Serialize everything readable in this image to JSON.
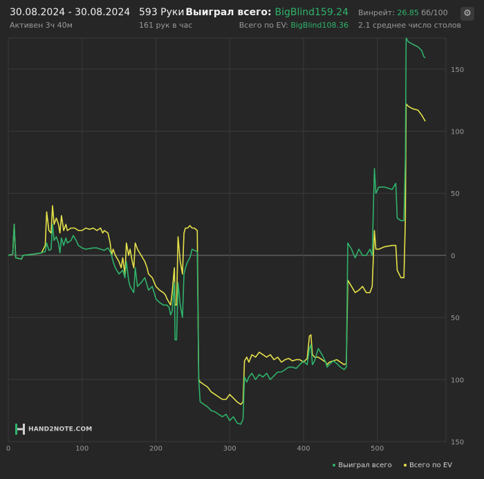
{
  "header": {
    "date_range": "30.08.2024 - 30.08.2024",
    "active_time": "Активен 3ч 40м",
    "hands_count": "593 Руки",
    "hands_per_hour": "161 рук в час",
    "won_label": "Выиграл всего:",
    "won_value": "BigBlind159.24",
    "ev_label": "Всего по EV:",
    "ev_value": "BigBlind108.36",
    "winrate_label": "Винрейт:",
    "winrate_value": "26.85",
    "winrate_unit": "бб/100",
    "avg_tables": "2.1 среднее число столов",
    "settings_icon": "gear-icon"
  },
  "logo": {
    "text": "HAND2NOTE.COM"
  },
  "legend": {
    "won": "Выиграл всего",
    "ev": "Всего по EV"
  },
  "colors": {
    "background": "#262626",
    "won": "#2fb36b",
    "ev": "#e6e34a",
    "grid": "#3a3a3a",
    "zero": "#7a7a7a",
    "accent": "#2fb36b"
  },
  "chart_data": {
    "type": "line",
    "xlim": [
      0,
      593
    ],
    "ylim": [
      -150,
      175
    ],
    "xticks": [
      0,
      100,
      200,
      300,
      400,
      500
    ],
    "yticks": [
      150,
      100,
      50,
      0,
      -50,
      -100,
      -150
    ],
    "ytick_labels": [
      "150",
      "100",
      "50",
      "0",
      "50",
      "100",
      "150"
    ],
    "grid": true,
    "legend_position": "bottom-right",
    "series": [
      {
        "name": "Выиграл всего",
        "color": "#2fb36b",
        "points": [
          [
            0,
            0
          ],
          [
            6,
            1
          ],
          [
            8,
            25
          ],
          [
            10,
            -2
          ],
          [
            18,
            -3
          ],
          [
            20,
            0
          ],
          [
            35,
            1
          ],
          [
            45,
            2
          ],
          [
            50,
            3
          ],
          [
            52,
            10
          ],
          [
            55,
            4
          ],
          [
            58,
            5
          ],
          [
            60,
            25
          ],
          [
            62,
            12
          ],
          [
            65,
            15
          ],
          [
            68,
            10
          ],
          [
            70,
            2
          ],
          [
            72,
            14
          ],
          [
            75,
            8
          ],
          [
            78,
            14
          ],
          [
            80,
            10
          ],
          [
            85,
            12
          ],
          [
            88,
            16
          ],
          [
            92,
            12
          ],
          [
            95,
            8
          ],
          [
            100,
            6
          ],
          [
            105,
            5
          ],
          [
            115,
            6
          ],
          [
            120,
            6
          ],
          [
            125,
            5
          ],
          [
            130,
            4
          ],
          [
            135,
            6
          ],
          [
            138,
            3
          ],
          [
            140,
            0
          ],
          [
            142,
            -5
          ],
          [
            145,
            -10
          ],
          [
            150,
            -15
          ],
          [
            155,
            -12
          ],
          [
            158,
            -18
          ],
          [
            160,
            -5
          ],
          [
            163,
            -20
          ],
          [
            165,
            -25
          ],
          [
            170,
            -30
          ],
          [
            172,
            -10
          ],
          [
            175,
            -25
          ],
          [
            180,
            -22
          ],
          [
            185,
            -18
          ],
          [
            190,
            -28
          ],
          [
            195,
            -25
          ],
          [
            200,
            -35
          ],
          [
            205,
            -38
          ],
          [
            210,
            -40
          ],
          [
            215,
            -40
          ],
          [
            218,
            -42
          ],
          [
            220,
            -48
          ],
          [
            222,
            -45
          ],
          [
            225,
            -22
          ],
          [
            226,
            -68
          ],
          [
            228,
            -68
          ],
          [
            230,
            -22
          ],
          [
            233,
            -40
          ],
          [
            236,
            -50
          ],
          [
            238,
            -15
          ],
          [
            240,
            -10
          ],
          [
            243,
            -5
          ],
          [
            246,
            -2
          ],
          [
            249,
            5
          ],
          [
            252,
            4
          ],
          [
            256,
            3
          ],
          [
            258,
            -100
          ],
          [
            260,
            -118
          ],
          [
            265,
            -120
          ],
          [
            270,
            -122
          ],
          [
            275,
            -125
          ],
          [
            280,
            -126
          ],
          [
            285,
            -128
          ],
          [
            290,
            -130
          ],
          [
            295,
            -128
          ],
          [
            300,
            -133
          ],
          [
            305,
            -130
          ],
          [
            310,
            -135
          ],
          [
            315,
            -136
          ],
          [
            318,
            -132
          ],
          [
            320,
            -98
          ],
          [
            323,
            -102
          ],
          [
            326,
            -98
          ],
          [
            330,
            -95
          ],
          [
            335,
            -100
          ],
          [
            340,
            -96
          ],
          [
            345,
            -98
          ],
          [
            350,
            -95
          ],
          [
            355,
            -100
          ],
          [
            360,
            -97
          ],
          [
            365,
            -94
          ],
          [
            370,
            -94
          ],
          [
            375,
            -92
          ],
          [
            380,
            -90
          ],
          [
            385,
            -90
          ],
          [
            390,
            -91
          ],
          [
            395,
            -88
          ],
          [
            400,
            -85
          ],
          [
            405,
            -88
          ],
          [
            408,
            -75
          ],
          [
            410,
            -72
          ],
          [
            412,
            -88
          ],
          [
            415,
            -85
          ],
          [
            420,
            -75
          ],
          [
            425,
            -80
          ],
          [
            430,
            -86
          ],
          [
            432,
            -90
          ],
          [
            435,
            -88
          ],
          [
            440,
            -85
          ],
          [
            445,
            -87
          ],
          [
            450,
            -90
          ],
          [
            455,
            -92
          ],
          [
            458,
            -90
          ],
          [
            460,
            10
          ],
          [
            465,
            5
          ],
          [
            470,
            -2
          ],
          [
            475,
            5
          ],
          [
            480,
            0
          ],
          [
            485,
            0
          ],
          [
            490,
            5
          ],
          [
            493,
            0
          ],
          [
            496,
            70
          ],
          [
            498,
            50
          ],
          [
            502,
            55
          ],
          [
            510,
            55
          ],
          [
            520,
            53
          ],
          [
            525,
            58
          ],
          [
            527,
            30
          ],
          [
            532,
            28
          ],
          [
            536,
            28
          ],
          [
            538,
            80
          ],
          [
            539,
            175
          ],
          [
            542,
            172
          ],
          [
            548,
            170
          ],
          [
            555,
            168
          ],
          [
            560,
            165
          ],
          [
            563,
            160
          ],
          [
            565,
            159
          ]
        ]
      },
      {
        "name": "Всего по EV",
        "color": "#e6e34a",
        "points": [
          [
            0,
            0
          ],
          [
            6,
            1
          ],
          [
            8,
            25
          ],
          [
            10,
            -2
          ],
          [
            18,
            -3
          ],
          [
            20,
            0
          ],
          [
            35,
            1
          ],
          [
            45,
            2
          ],
          [
            50,
            8
          ],
          [
            52,
            35
          ],
          [
            55,
            20
          ],
          [
            58,
            18
          ],
          [
            60,
            40
          ],
          [
            62,
            25
          ],
          [
            65,
            30
          ],
          [
            68,
            25
          ],
          [
            70,
            18
          ],
          [
            72,
            32
          ],
          [
            75,
            20
          ],
          [
            78,
            25
          ],
          [
            80,
            20
          ],
          [
            85,
            22
          ],
          [
            90,
            22
          ],
          [
            95,
            20
          ],
          [
            100,
            20
          ],
          [
            105,
            22
          ],
          [
            110,
            21
          ],
          [
            115,
            22
          ],
          [
            120,
            20
          ],
          [
            125,
            22
          ],
          [
            128,
            18
          ],
          [
            130,
            20
          ],
          [
            135,
            18
          ],
          [
            138,
            10
          ],
          [
            140,
            0
          ],
          [
            142,
            5
          ],
          [
            145,
            0
          ],
          [
            150,
            -5
          ],
          [
            153,
            -10
          ],
          [
            155,
            -2
          ],
          [
            158,
            -15
          ],
          [
            160,
            10
          ],
          [
            163,
            0
          ],
          [
            165,
            5
          ],
          [
            168,
            -5
          ],
          [
            170,
            -10
          ],
          [
            172,
            10
          ],
          [
            175,
            5
          ],
          [
            180,
            0
          ],
          [
            185,
            -5
          ],
          [
            188,
            -10
          ],
          [
            190,
            -15
          ],
          [
            195,
            -18
          ],
          [
            200,
            -25
          ],
          [
            205,
            -28
          ],
          [
            210,
            -30
          ],
          [
            213,
            -32
          ],
          [
            215,
            -35
          ],
          [
            218,
            -38
          ],
          [
            220,
            -40
          ],
          [
            222,
            -30
          ],
          [
            225,
            -10
          ],
          [
            226,
            -40
          ],
          [
            228,
            -40
          ],
          [
            230,
            15
          ],
          [
            233,
            -5
          ],
          [
            236,
            -15
          ],
          [
            238,
            18
          ],
          [
            240,
            22
          ],
          [
            243,
            22
          ],
          [
            246,
            24
          ],
          [
            249,
            22
          ],
          [
            252,
            22
          ],
          [
            256,
            20
          ],
          [
            258,
            -100
          ],
          [
            260,
            -102
          ],
          [
            265,
            -104
          ],
          [
            270,
            -106
          ],
          [
            275,
            -110
          ],
          [
            280,
            -112
          ],
          [
            285,
            -114
          ],
          [
            290,
            -116
          ],
          [
            295,
            -116
          ],
          [
            300,
            -112
          ],
          [
            305,
            -115
          ],
          [
            310,
            -118
          ],
          [
            315,
            -120
          ],
          [
            318,
            -118
          ],
          [
            320,
            -85
          ],
          [
            323,
            -82
          ],
          [
            326,
            -86
          ],
          [
            330,
            -80
          ],
          [
            335,
            -82
          ],
          [
            340,
            -78
          ],
          [
            345,
            -80
          ],
          [
            350,
            -82
          ],
          [
            355,
            -80
          ],
          [
            360,
            -84
          ],
          [
            365,
            -82
          ],
          [
            370,
            -86
          ],
          [
            375,
            -84
          ],
          [
            380,
            -83
          ],
          [
            385,
            -85
          ],
          [
            390,
            -84
          ],
          [
            395,
            -84
          ],
          [
            400,
            -86
          ],
          [
            405,
            -83
          ],
          [
            408,
            -65
          ],
          [
            410,
            -64
          ],
          [
            412,
            -80
          ],
          [
            415,
            -82
          ],
          [
            420,
            -82
          ],
          [
            425,
            -84
          ],
          [
            430,
            -86
          ],
          [
            432,
            -88
          ],
          [
            435,
            -86
          ],
          [
            440,
            -85
          ],
          [
            445,
            -84
          ],
          [
            450,
            -86
          ],
          [
            455,
            -88
          ],
          [
            458,
            -87
          ],
          [
            460,
            -20
          ],
          [
            465,
            -25
          ],
          [
            470,
            -30
          ],
          [
            475,
            -28
          ],
          [
            480,
            -25
          ],
          [
            485,
            -30
          ],
          [
            490,
            -30
          ],
          [
            493,
            -25
          ],
          [
            496,
            20
          ],
          [
            498,
            5
          ],
          [
            502,
            5
          ],
          [
            510,
            7
          ],
          [
            520,
            8
          ],
          [
            525,
            8
          ],
          [
            527,
            -12
          ],
          [
            532,
            -18
          ],
          [
            536,
            -18
          ],
          [
            538,
            30
          ],
          [
            539,
            122
          ],
          [
            542,
            120
          ],
          [
            548,
            118
          ],
          [
            555,
            117
          ],
          [
            560,
            113
          ],
          [
            563,
            110
          ],
          [
            565,
            108
          ]
        ]
      }
    ]
  }
}
